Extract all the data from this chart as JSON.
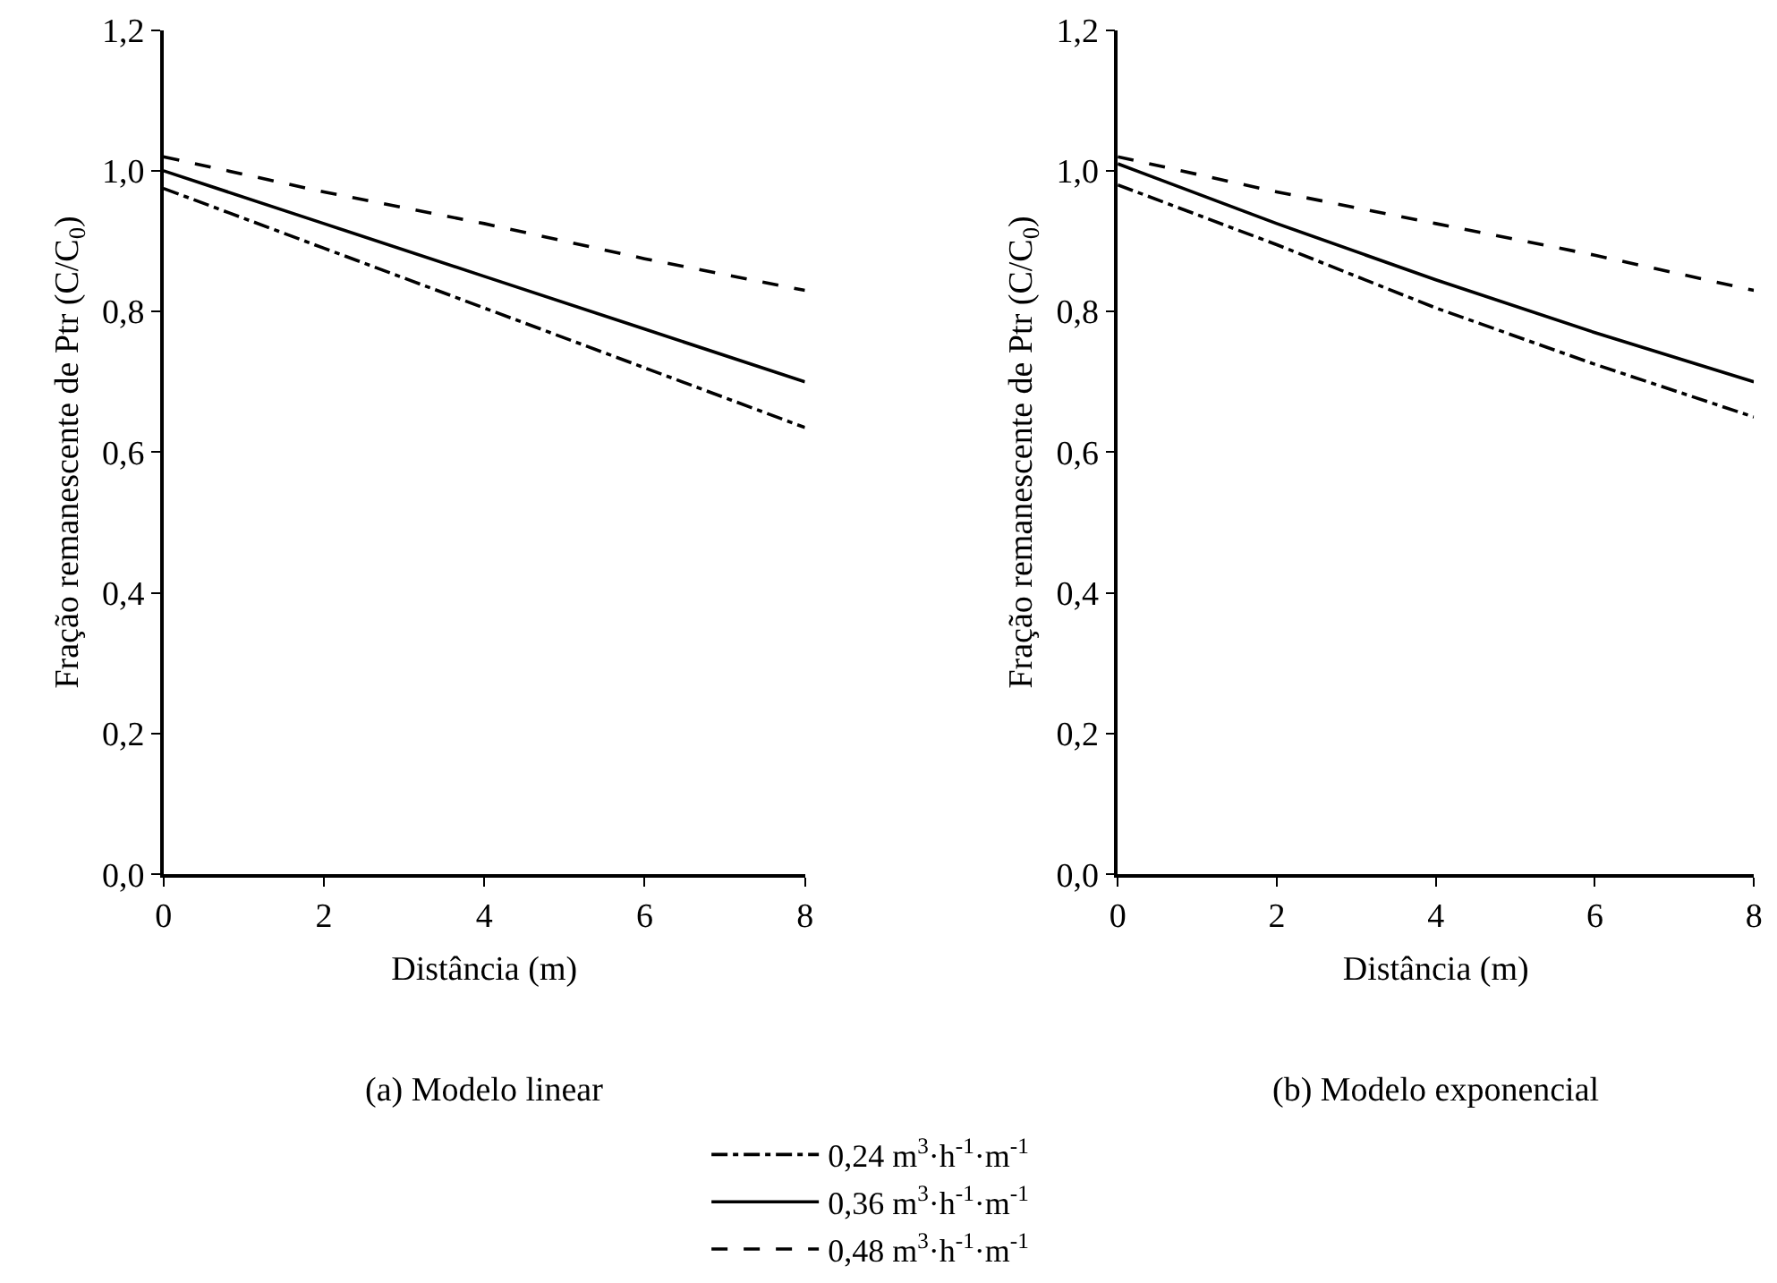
{
  "chart_data": [
    {
      "type": "line",
      "xlabel": "Distância (m)",
      "ylabel": "Fração remanescente de Ptr (C/C$_{0}$)",
      "annotations": [
        "(a) Modelo linear"
      ],
      "x": [
        0,
        2,
        4,
        6,
        8
      ],
      "xlim": [
        0,
        8
      ],
      "xticks": [
        0,
        2,
        4,
        6,
        8
      ],
      "ylim": [
        0,
        1.2
      ],
      "yticks": [
        {
          "value": 0,
          "label": "0,0"
        },
        {
          "value": 0.2,
          "label": "0,2"
        },
        {
          "value": 0.4,
          "label": "0,4"
        },
        {
          "value": 0.6,
          "label": "0,6"
        },
        {
          "value": 0.8,
          "label": "0,8"
        },
        {
          "value": 1.0,
          "label": "1,0"
        },
        {
          "value": 1.2,
          "label": "1,2"
        }
      ],
      "grid": false,
      "legend": "bottom",
      "marker": "none",
      "series": [
        {
          "name": "0,24 m$^{3}$·h$^{-1}$·m$^{-1}$",
          "color": "#000000",
          "line_style": "dashdot",
          "values": [
            0.975,
            0.89,
            0.805,
            0.72,
            0.635
          ]
        },
        {
          "name": "0,36 m$^{3}$·h$^{-1}$·m$^{-1}$",
          "color": "#000000",
          "line_style": "solid",
          "values": [
            1.0,
            0.925,
            0.85,
            0.775,
            0.7
          ]
        },
        {
          "name": "0,48 m$^{3}$·h$^{-1}$·m$^{-1}$",
          "color": "#000000",
          "line_style": "dashed",
          "values": [
            1.02,
            0.97,
            0.925,
            0.875,
            0.83
          ]
        }
      ]
    },
    {
      "type": "line",
      "xlabel": "Distância (m)",
      "ylabel": "Fração remanescente de Ptr (C/C$_{0}$)",
      "annotations": [
        "(b) Modelo exponencial"
      ],
      "x": [
        0,
        2,
        4,
        6,
        8
      ],
      "xlim": [
        0,
        8
      ],
      "xticks": [
        0,
        2,
        4,
        6,
        8
      ],
      "ylim": [
        0,
        1.2
      ],
      "yticks": [
        {
          "value": 0,
          "label": "0,0"
        },
        {
          "value": 0.2,
          "label": "0,2"
        },
        {
          "value": 0.4,
          "label": "0,4"
        },
        {
          "value": 0.6,
          "label": "0,6"
        },
        {
          "value": 0.8,
          "label": "0,8"
        },
        {
          "value": 1.0,
          "label": "1,0"
        },
        {
          "value": 1.2,
          "label": "1,2"
        }
      ],
      "grid": false,
      "legend": "bottom",
      "marker": "none",
      "series": [
        {
          "color": "#000000",
          "line_style": "dashdot",
          "values": [
            0.98,
            0.895,
            0.805,
            0.725,
            0.65
          ]
        },
        {
          "color": "#000000",
          "line_style": "solid",
          "values": [
            1.01,
            0.925,
            0.845,
            0.77,
            0.7
          ]
        },
        {
          "color": "#000000",
          "line_style": "dashed",
          "values": [
            1.02,
            0.97,
            0.925,
            0.88,
            0.83
          ]
        }
      ]
    }
  ]
}
